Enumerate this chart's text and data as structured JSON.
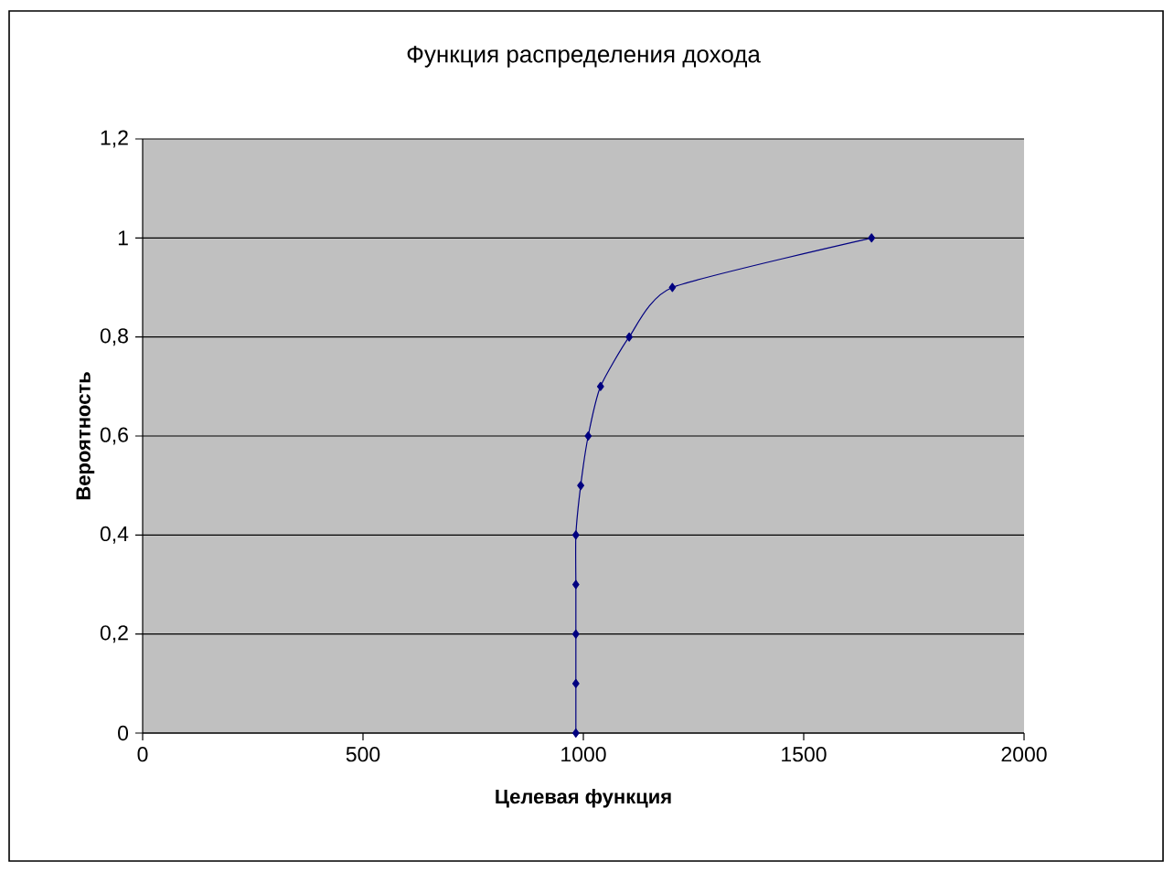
{
  "chart_data": {
    "type": "line",
    "title": "Функция распределения дохода",
    "xlabel": "Целевая функция",
    "ylabel": "Вероятность",
    "x": [
      983,
      983,
      983,
      983,
      983,
      994,
      1011,
      1039,
      1104,
      1202,
      1654
    ],
    "series": [
      {
        "color": "#000080",
        "values": [
          0,
          0.1,
          0.2,
          0.3,
          0.4,
          0.5,
          0.6,
          0.7,
          0.8,
          0.9,
          1
        ]
      }
    ],
    "xlim": [
      0,
      2000
    ],
    "xticks": [
      0,
      500,
      1000,
      1500,
      2000
    ],
    "ylim": [
      0,
      1.2
    ],
    "yticks": [
      0,
      {
        "value": 0.2,
        "label": "0,2"
      },
      {
        "value": 0.4,
        "label": "0,4"
      },
      {
        "value": 0.6,
        "label": "0,6"
      },
      {
        "value": 0.8,
        "label": "0,8"
      },
      1,
      {
        "value": 1.2,
        "label": "1,2"
      }
    ],
    "grid": "y",
    "marker": "diamond",
    "line_style": "solid"
  }
}
